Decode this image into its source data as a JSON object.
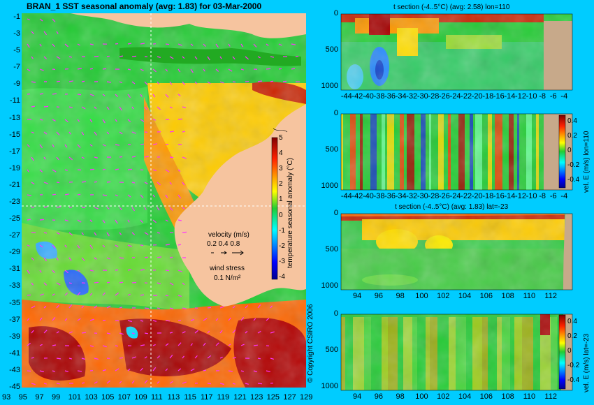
{
  "colors": {
    "background": "#00ccff",
    "land": "#f6c49f",
    "seafloor": "#c7a98a",
    "crosshair": "#ffffff",
    "vectors": "#ff33ff"
  },
  "map": {
    "title": "BRAN_1  SST seasonal anomaly  (avg: 1.83)  for 03-Mar-2000",
    "colorbar_label": "temperature seasonal anomaly (°C)",
    "colorbar_ticks": [
      "5",
      "4",
      "3",
      "2",
      "1",
      "0",
      "-1",
      "-2",
      "-3",
      "-4"
    ],
    "velocity_label": "velocity (m/s)",
    "velocity_scale": "0.2 0.4 0.8",
    "wind_label": "wind stress",
    "wind_scale": "0.1 N/m²",
    "copyright": "© Copyright CSIRO 2006"
  },
  "panels": [
    {
      "title": "t section (-4..5°C)  (avg: 2.58) lon=110",
      "colorbar_label": ""
    },
    {
      "title": "",
      "colorbar_label": "vel. E (m/s) lon=110"
    },
    {
      "title": "t section (-4..5°C)  (avg: 1.83) lat=-23",
      "colorbar_label": ""
    },
    {
      "title": "",
      "colorbar_label": "vel. E (m/s) lat=-23"
    }
  ],
  "chart_data": [
    {
      "type": "heatmap",
      "title": "BRAN_1  SST seasonal anomaly  (avg: 1.83)  for 03-Mar-2000",
      "x_ticks": [
        "93",
        "95",
        "97",
        "99",
        "101",
        "103",
        "105",
        "107",
        "109",
        "111",
        "113",
        "115",
        "117",
        "119",
        "121",
        "123",
        "125",
        "127",
        "129"
      ],
      "y_ticks": [
        "-1",
        "-3",
        "-5",
        "-7",
        "-9",
        "-11",
        "-13",
        "-15",
        "-17",
        "-19",
        "-21",
        "-23",
        "-25",
        "-27",
        "-29",
        "-31",
        "-33",
        "-35",
        "-37",
        "-39",
        "-41",
        "-43",
        "-45"
      ],
      "xlim": [
        92.5,
        130
      ],
      "ylim": [
        -45,
        0.5
      ],
      "colorbar": {
        "label": "temperature seasonal anomaly (°C)",
        "range": [
          -4,
          5
        ]
      },
      "crosshair": {
        "lon": 110,
        "lat": -23
      }
    },
    {
      "type": "heatmap",
      "title": "t section (-4..5°C)  (avg: 2.58) lon=110",
      "x_ticks": [
        "-44",
        "-42",
        "-40",
        "-38",
        "-36",
        "-34",
        "-32",
        "-30",
        "-28",
        "-26",
        "-24",
        "-22",
        "-20",
        "-18",
        "-16",
        "-14",
        "-12",
        "-10",
        "-8",
        "-6",
        "-4"
      ],
      "y_ticks": [
        "0",
        "500",
        "1000"
      ],
      "xlim": [
        -45,
        -2.5
      ],
      "ylim": [
        1050,
        0
      ]
    },
    {
      "type": "heatmap",
      "title": "",
      "x_ticks": [
        "-44",
        "-42",
        "-40",
        "-38",
        "-36",
        "-34",
        "-32",
        "-30",
        "-28",
        "-26",
        "-24",
        "-22",
        "-20",
        "-18",
        "-16",
        "-14",
        "-12",
        "-10",
        "-8",
        "-6",
        "-4"
      ],
      "y_ticks": [
        "0",
        "500",
        "1000"
      ],
      "xlim": [
        -45,
        -2.5
      ],
      "ylim": [
        1050,
        0
      ],
      "colorbar": {
        "label": "vel. E (m/s) lon=110",
        "ticks": [
          "0.4",
          "0.2",
          "0",
          "-0.2",
          "-0.4"
        ],
        "range": [
          -0.5,
          0.5
        ]
      }
    },
    {
      "type": "heatmap",
      "title": "t section (-4..5°C)  (avg: 1.83) lat=-23",
      "x_ticks": [
        "94",
        "96",
        "98",
        "100",
        "102",
        "104",
        "106",
        "108",
        "110",
        "112"
      ],
      "y_ticks": [
        "0",
        "500",
        "1000"
      ],
      "xlim": [
        92.5,
        114
      ],
      "ylim": [
        1050,
        0
      ]
    },
    {
      "type": "heatmap",
      "title": "",
      "x_ticks": [
        "94",
        "96",
        "98",
        "100",
        "102",
        "104",
        "106",
        "108",
        "110",
        "112"
      ],
      "y_ticks": [
        "0",
        "500",
        "1000"
      ],
      "xlim": [
        92.5,
        114
      ],
      "ylim": [
        1050,
        0
      ],
      "colorbar": {
        "label": "vel. E (m/s) lat=-23",
        "ticks": [
          "0.4",
          "0.2",
          "0",
          "-0.2",
          "-0.4"
        ],
        "range": [
          -0.5,
          0.5
        ]
      }
    }
  ]
}
